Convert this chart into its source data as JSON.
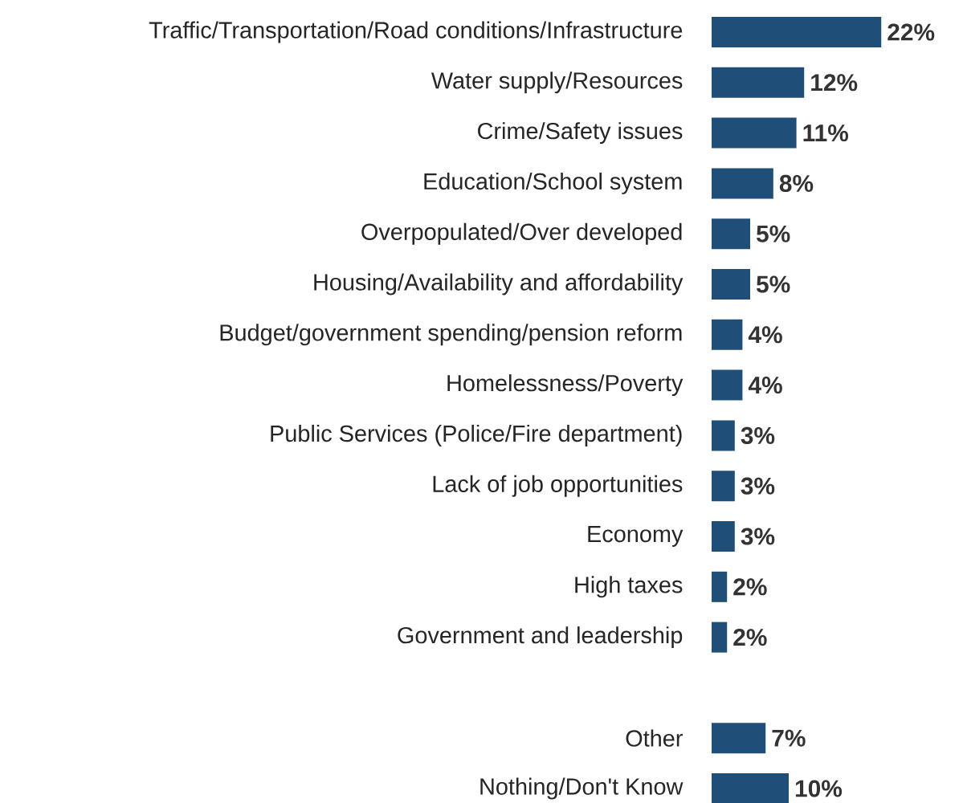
{
  "chart_data": {
    "type": "bar",
    "orientation": "horizontal",
    "color": "#1f4e79",
    "categories": [
      "Traffic/Transportation/Road conditions/Infrastructure",
      "Water supply/Resources",
      "Crime/Safety issues",
      "Education/School system",
      "Overpopulated/Over developed",
      "Housing/Availability and affordability",
      "Budget/government spending/pension reform",
      "Homelessness/Poverty",
      "Public Services (Police/Fire department)",
      "Lack of job opportunities",
      "Economy",
      "High taxes",
      "Government and leadership",
      null,
      "Other",
      "Nothing/Don't Know"
    ],
    "values": [
      22,
      12,
      11,
      8,
      5,
      5,
      4,
      4,
      3,
      3,
      3,
      2,
      2,
      null,
      7,
      10
    ],
    "value_labels": [
      "22%",
      "12%",
      "11%",
      "8%",
      "5%",
      "5%",
      "4%",
      "4%",
      "3%",
      "3%",
      "3%",
      "2%",
      "2%",
      null,
      "7%",
      "10%"
    ]
  }
}
